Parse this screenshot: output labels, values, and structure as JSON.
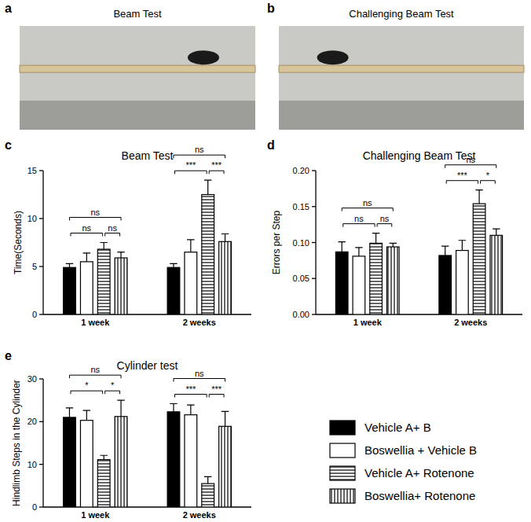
{
  "photos": [
    {
      "label": "a",
      "title": "Beam Test"
    },
    {
      "label": "b",
      "title": "Challenging Beam Test"
    }
  ],
  "panel_labels": [
    "c",
    "d",
    "e"
  ],
  "chart_data": [
    {
      "type": "bar",
      "title": "Beam Test",
      "y_label": "Time(Seconds)",
      "categories": [
        "1 week",
        "2 weeks"
      ],
      "series": [
        {
          "color": "#000000",
          "values": [
            4.9,
            4.9
          ],
          "errors": [
            0.4,
            0.4
          ]
        },
        {
          "color": "#ffffff",
          "values": [
            5.5,
            6.5
          ],
          "errors": [
            0.9,
            1.3
          ]
        },
        {
          "color": "#ffffff",
          "values": [
            6.8,
            12.5
          ],
          "errors": [
            0.7,
            1.5
          ]
        },
        {
          "color": "#ffffff",
          "values": [
            5.9,
            7.6
          ],
          "errors": [
            0.6,
            0.8
          ]
        }
      ],
      "ylim": [
        0,
        15
      ],
      "yticks": [
        0,
        5,
        10,
        15
      ],
      "annotations": [
        {
          "category": 0,
          "pair": [
            0,
            3
          ],
          "text": "ns"
        },
        {
          "category": 0,
          "pair": [
            0,
            2
          ],
          "text": "ns"
        },
        {
          "category": 0,
          "pair": [
            2,
            3
          ],
          "text": "ns"
        },
        {
          "category": 1,
          "pair": [
            0,
            3
          ],
          "text": "ns"
        },
        {
          "category": 1,
          "pair": [
            0,
            2
          ],
          "text": "***"
        },
        {
          "category": 1,
          "pair": [
            2,
            3
          ],
          "text": "***"
        }
      ]
    },
    {
      "type": "bar",
      "title": "Challenging Beam Test",
      "y_label": "Errors per Step",
      "categories": [
        "1 week",
        "2 weeks"
      ],
      "series": [
        {
          "color": "#000000",
          "values": [
            0.087,
            0.082
          ],
          "errors": [
            0.014,
            0.013
          ]
        },
        {
          "color": "#ffffff",
          "values": [
            0.081,
            0.089
          ],
          "errors": [
            0.012,
            0.014
          ]
        },
        {
          "color": "#ffffff",
          "values": [
            0.099,
            0.154
          ],
          "errors": [
            0.014,
            0.019
          ]
        },
        {
          "color": "#ffffff",
          "values": [
            0.094,
            0.11
          ],
          "errors": [
            0.005,
            0.009
          ]
        }
      ],
      "ylim": [
        0,
        0.2
      ],
      "yticks": [
        {
          "value": 0,
          "label": "0.00"
        },
        {
          "value": 0.05,
          "label": "0.05"
        },
        {
          "value": 0.1,
          "label": "0.10"
        },
        {
          "value": 0.15,
          "label": "0.15"
        },
        {
          "value": 0.2,
          "label": "0.20"
        }
      ],
      "annotations": [
        {
          "category": 0,
          "pair": [
            0,
            3
          ],
          "text": "ns"
        },
        {
          "category": 0,
          "pair": [
            0,
            2
          ],
          "text": "ns"
        },
        {
          "category": 0,
          "pair": [
            2,
            3
          ],
          "text": "ns"
        },
        {
          "category": 1,
          "pair": [
            0,
            3
          ],
          "text": "ns"
        },
        {
          "category": 1,
          "pair": [
            0,
            2
          ],
          "text": "***"
        },
        {
          "category": 1,
          "pair": [
            2,
            3
          ],
          "text": "*"
        }
      ]
    },
    {
      "type": "bar",
      "title": "Cylinder test",
      "y_label": "Hindlimb Steps in the Cylinder",
      "categories": [
        "1 week",
        "2 weeks"
      ],
      "series": [
        {
          "name": "Vehicle A+ B",
          "color": "#000000",
          "values": [
            21.0,
            22.3
          ],
          "errors": [
            2.2,
            1.9
          ]
        },
        {
          "name": "Boswellia + Vehicle B",
          "color": "#ffffff",
          "values": [
            20.3,
            21.6
          ],
          "errors": [
            2.3,
            2.3
          ]
        },
        {
          "name": "Vehicle A+ Rotenone",
          "color": "#ffffff",
          "values": [
            11.1,
            5.5
          ],
          "errors": [
            1.0,
            1.6
          ]
        },
        {
          "name": "Boswellia+ Rotenone",
          "color": "#ffffff",
          "values": [
            21.2,
            18.9
          ],
          "errors": [
            3.8,
            3.5
          ]
        }
      ],
      "ylim": [
        0,
        30
      ],
      "yticks": [
        0,
        10,
        20,
        30
      ],
      "legend": "right",
      "annotations": [
        {
          "category": 0,
          "pair": [
            0,
            3
          ],
          "text": "ns"
        },
        {
          "category": 0,
          "pair": [
            0,
            2
          ],
          "text": "*"
        },
        {
          "category": 0,
          "pair": [
            2,
            3
          ],
          "text": "*"
        },
        {
          "category": 1,
          "pair": [
            0,
            3
          ],
          "text": "ns"
        },
        {
          "category": 1,
          "pair": [
            0,
            2
          ],
          "text": "***"
        },
        {
          "category": 1,
          "pair": [
            2,
            3
          ],
          "text": "***"
        }
      ]
    }
  ]
}
